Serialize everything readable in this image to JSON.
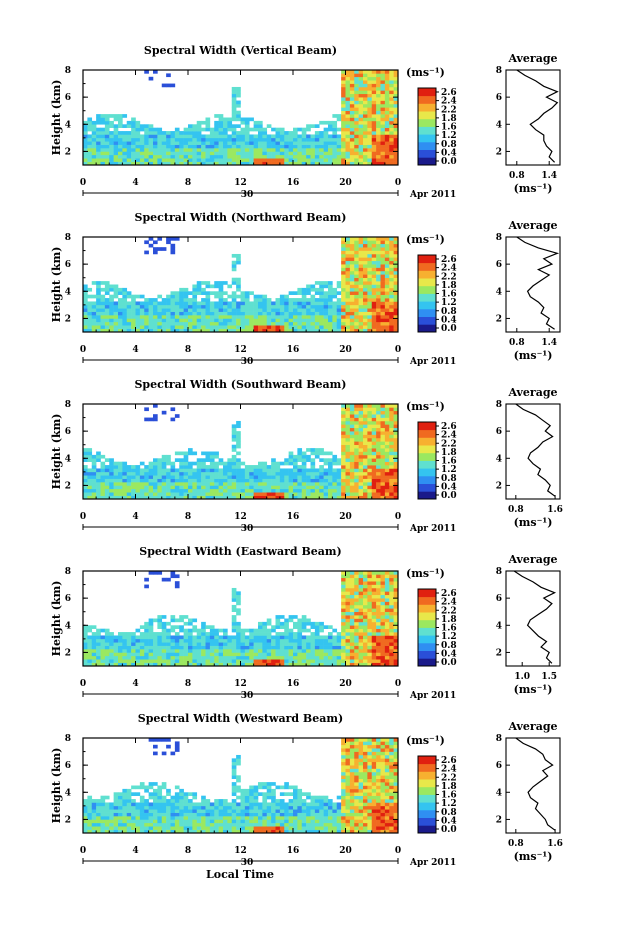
{
  "figure": {
    "xlabel": "Local Time",
    "date_label": "Apr 2011",
    "date_day": "30",
    "unit_label": "(ms⁻¹)",
    "avg_title": "Average",
    "colorbar_ticks": [
      "2.6",
      "2.4",
      "2.2",
      "1.8",
      "1.6",
      "1.2",
      "0.8",
      "0.4",
      "0.0"
    ],
    "x_ticks": [
      "0",
      "4",
      "8",
      "12",
      "16",
      "20",
      "0"
    ],
    "y_ticks": [
      "8",
      "6",
      "4",
      "2"
    ],
    "ylabel": "Height (km)",
    "colorscale": [
      "#1a1a8a",
      "#2a4fd8",
      "#2f8ff2",
      "#34c4f0",
      "#5fe0d0",
      "#9be860",
      "#e8e84a",
      "#f7b030",
      "#f06a20",
      "#e02010"
    ]
  },
  "chart_data": [
    {
      "type": "heatmap",
      "title": "Spectral Width (Vertical Beam)",
      "xlabel": "Local Time",
      "ylabel": "Height (km)",
      "xlim": [
        0,
        24
      ],
      "ylim": [
        1,
        8
      ],
      "colorbar": {
        "unit": "(ms⁻¹)",
        "range": [
          0.0,
          2.6
        ]
      },
      "profile": {
        "title": "Average",
        "xlabel": "(ms⁻¹)",
        "xticks": [
          "0.8",
          "1.4"
        ],
        "xlim": [
          0.6,
          1.6
        ],
        "height": [
          1.2,
          1.6,
          2.0,
          2.4,
          2.8,
          3.2,
          3.6,
          4.0,
          4.4,
          4.8,
          5.2,
          5.6,
          6.0,
          6.4,
          6.8,
          7.2,
          7.6,
          8.0
        ],
        "width": [
          1.5,
          1.4,
          1.45,
          1.35,
          1.3,
          1.3,
          1.15,
          1.05,
          1.2,
          1.3,
          1.45,
          1.55,
          1.35,
          1.55,
          1.3,
          1.15,
          0.95,
          0.8
        ]
      }
    },
    {
      "type": "heatmap",
      "title": "Spectral Width (Northward Beam)",
      "xlabel": "Local Time",
      "ylabel": "Height (km)",
      "xlim": [
        0,
        24
      ],
      "ylim": [
        1,
        8
      ],
      "colorbar": {
        "unit": "(ms⁻¹)",
        "range": [
          0.0,
          2.6
        ]
      },
      "profile": {
        "title": "Average",
        "xlabel": "(ms⁻¹)",
        "xticks": [
          "0.8",
          "1.4"
        ],
        "xlim": [
          0.6,
          1.6
        ],
        "height": [
          1.2,
          1.6,
          2.0,
          2.4,
          2.8,
          3.2,
          3.6,
          4.0,
          4.4,
          4.8,
          5.2,
          5.6,
          6.0,
          6.4,
          6.8,
          7.2,
          7.6,
          8.0
        ],
        "width": [
          1.5,
          1.35,
          1.4,
          1.25,
          1.3,
          1.2,
          1.05,
          1.0,
          1.1,
          1.25,
          1.4,
          1.2,
          1.45,
          1.3,
          1.55,
          1.2,
          0.95,
          0.8
        ]
      }
    },
    {
      "type": "heatmap",
      "title": "Spectral Width (Southward Beam)",
      "xlabel": "Local Time",
      "ylabel": "Height (km)",
      "xlim": [
        0,
        24
      ],
      "ylim": [
        1,
        8
      ],
      "colorbar": {
        "unit": "(ms⁻¹)",
        "range": [
          0.0,
          2.6
        ]
      },
      "profile": {
        "title": "Average",
        "xlabel": "(ms⁻¹)",
        "xticks": [
          "0.8",
          "1.6"
        ],
        "xlim": [
          0.6,
          1.7
        ],
        "height": [
          1.2,
          1.6,
          2.0,
          2.4,
          2.8,
          3.2,
          3.6,
          4.0,
          4.4,
          4.8,
          5.2,
          5.6,
          6.0,
          6.4,
          6.8,
          7.2,
          7.6,
          8.0
        ],
        "width": [
          1.6,
          1.45,
          1.5,
          1.4,
          1.25,
          1.3,
          1.15,
          1.05,
          1.1,
          1.25,
          1.35,
          1.55,
          1.4,
          1.5,
          1.35,
          1.2,
          0.95,
          0.8
        ]
      }
    },
    {
      "type": "heatmap",
      "title": "Spectral Width (Eastward Beam)",
      "xlabel": "Local Time",
      "ylabel": "Height (km)",
      "xlim": [
        0,
        24
      ],
      "ylim": [
        1,
        8
      ],
      "colorbar": {
        "unit": "(ms⁻¹)",
        "range": [
          0.0,
          2.6
        ]
      },
      "profile": {
        "title": "Average",
        "xlabel": "(ms⁻¹)",
        "xticks": [
          "1.0",
          "1.5"
        ],
        "xlim": [
          0.7,
          1.7
        ],
        "height": [
          1.2,
          1.6,
          2.0,
          2.4,
          2.8,
          3.2,
          3.6,
          4.0,
          4.4,
          4.8,
          5.2,
          5.6,
          6.0,
          6.4,
          6.8,
          7.2,
          7.6,
          8.0
        ],
        "width": [
          1.55,
          1.45,
          1.5,
          1.35,
          1.45,
          1.3,
          1.2,
          1.1,
          1.15,
          1.3,
          1.45,
          1.55,
          1.4,
          1.6,
          1.35,
          1.2,
          1.0,
          0.85
        ]
      }
    },
    {
      "type": "heatmap",
      "title": "Spectral Width (Westward Beam)",
      "xlabel": "Local Time",
      "ylabel": "Height (km)",
      "xlim": [
        0,
        24
      ],
      "ylim": [
        1,
        8
      ],
      "colorbar": {
        "unit": "(ms⁻¹)",
        "range": [
          0.0,
          2.6
        ]
      },
      "profile": {
        "title": "Average",
        "xlabel": "(ms⁻¹)",
        "xticks": [
          "0.8",
          "1.6"
        ],
        "xlim": [
          0.6,
          1.7
        ],
        "height": [
          1.2,
          1.6,
          2.0,
          2.4,
          2.8,
          3.2,
          3.6,
          4.0,
          4.4,
          4.8,
          5.2,
          5.6,
          6.0,
          6.4,
          6.8,
          7.2,
          7.6,
          8.0
        ],
        "width": [
          1.6,
          1.45,
          1.4,
          1.3,
          1.2,
          1.25,
          1.1,
          1.05,
          1.15,
          1.3,
          1.45,
          1.35,
          1.55,
          1.4,
          1.35,
          1.2,
          0.95,
          0.8
        ]
      }
    }
  ]
}
